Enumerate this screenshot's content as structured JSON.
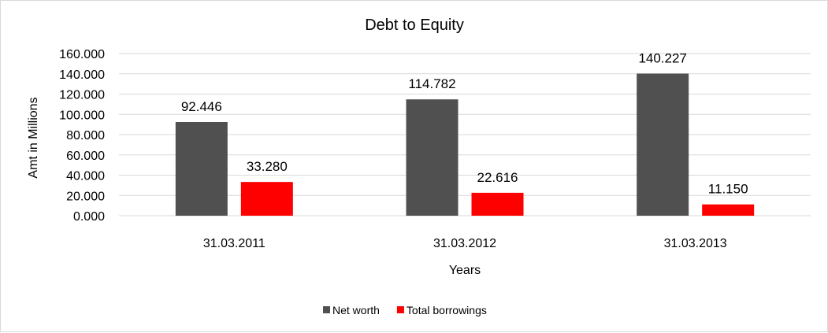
{
  "chart_data": {
    "type": "bar",
    "title": "Debt to Equity",
    "xlabel": "Years",
    "ylabel": "Amt in Millions",
    "categories": [
      "31.03.2011",
      "31.03.2012",
      "31.03.2013"
    ],
    "series": [
      {
        "name": "Net worth",
        "values": [
          92.446,
          114.782,
          140.227
        ],
        "labels": [
          "92.446",
          "114.782",
          "140.227"
        ],
        "color": "#505050"
      },
      {
        "name": "Total borrowings",
        "values": [
          33.28,
          22.616,
          11.15
        ],
        "labels": [
          "33.280",
          "22.616",
          "11.150"
        ],
        "color": "#ff0000"
      }
    ],
    "ylim": [
      0,
      160
    ],
    "yticks": [
      "0.000",
      "20.000",
      "40.000",
      "60.000",
      "80.000",
      "100.000",
      "120.000",
      "140.000",
      "160.000"
    ],
    "grid": true,
    "legend_position": "bottom"
  }
}
